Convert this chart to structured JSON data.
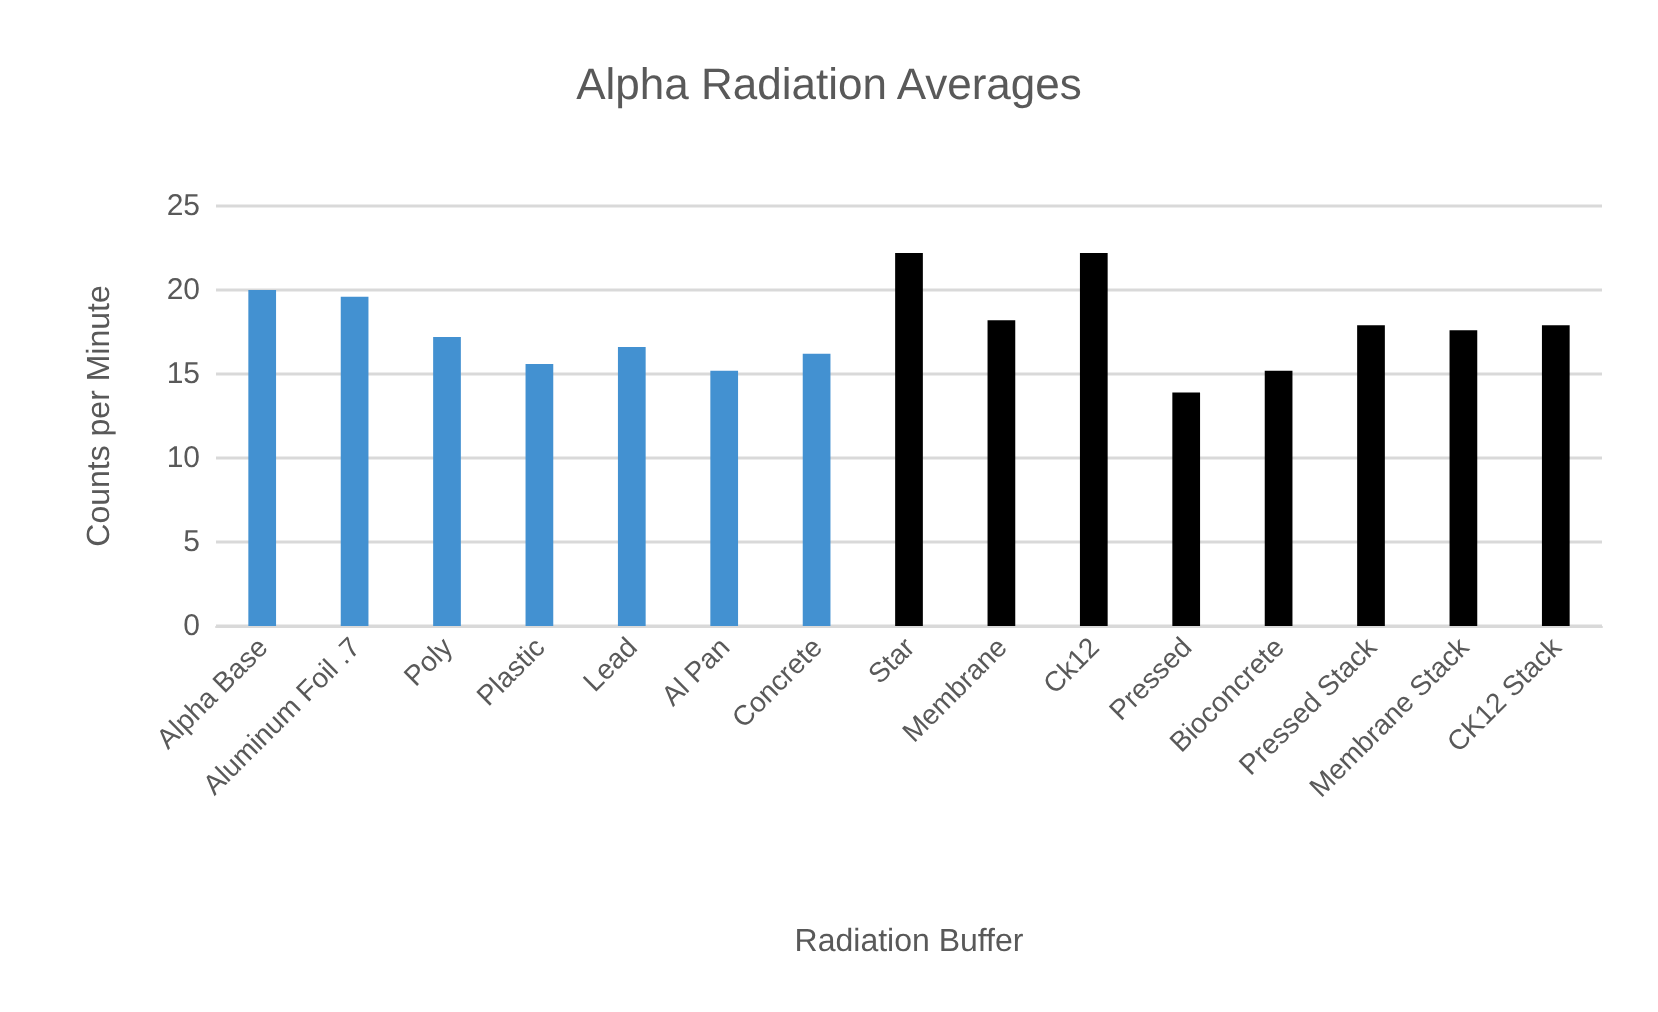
{
  "chart_data": {
    "type": "bar",
    "title": "Alpha Radiation Averages",
    "xlabel": "Radiation Buffer",
    "ylabel": "Counts per Minute",
    "categories": [
      "Alpha Base",
      "Aluminum Foil .7",
      "Poly",
      "Plastic",
      "Lead",
      "Al Pan",
      "Concrete",
      "Star",
      "Membrane",
      "Ck12",
      "Pressed",
      "Bioconcrete",
      "Pressed Stack",
      "Membrane Stack",
      "CK12 Stack"
    ],
    "values": [
      20.0,
      19.6,
      17.2,
      15.6,
      16.6,
      15.2,
      16.2,
      22.2,
      18.2,
      22.2,
      13.9,
      15.2,
      17.9,
      17.6,
      17.9
    ],
    "colors": [
      "#4391d1",
      "#4391d1",
      "#4391d1",
      "#4391d1",
      "#4391d1",
      "#4391d1",
      "#4391d1",
      "#000000",
      "#000000",
      "#000000",
      "#000000",
      "#000000",
      "#000000",
      "#000000",
      "#000000"
    ],
    "ylim": [
      0,
      25
    ],
    "yticks": [
      0,
      5,
      10,
      15,
      20,
      25
    ],
    "grid": "y"
  }
}
